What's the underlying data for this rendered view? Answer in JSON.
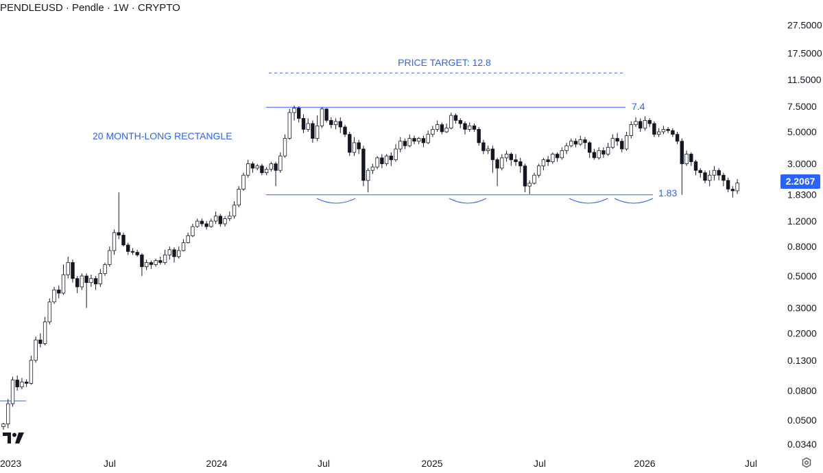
{
  "title": "PENDLEUSD · Pendle · 1W · CRYPTO",
  "last_price": "2.2067",
  "accent_color": "#2962ff",
  "candle_up_color": "#ffffff",
  "candle_down_color": "#131722",
  "chart_data": {
    "type": "candlestick",
    "y_scale": "log",
    "y_ticks": [
      "27.5000",
      "17.5000",
      "11.5000",
      "7.5000",
      "5.0000",
      "3.0000",
      "1.8300",
      "1.2000",
      "0.8000",
      "0.5000",
      "0.3000",
      "0.2000",
      "0.1300",
      "0.0800",
      "0.0500",
      "0.0340"
    ],
    "y_tick_values": [
      27.5,
      17.5,
      11.5,
      7.5,
      5.0,
      3.0,
      1.83,
      1.2,
      0.8,
      0.5,
      0.3,
      0.2,
      0.13,
      0.08,
      0.05,
      0.034
    ],
    "x_ticks": [
      "2023",
      "Jul",
      "2024",
      "Jul",
      "2025",
      "Jul",
      "2026",
      "Jul"
    ],
    "ylim": [
      0.029,
      45
    ],
    "annotations": {
      "price_target": "PRICE TARGET: 12.8",
      "pattern": "20 MONTH-LONG RECTANGLE",
      "resistance_label": "7.4",
      "support_label": "1.83"
    },
    "levels": {
      "resistance": 7.4,
      "support": 1.83,
      "target": 12.8,
      "early_line": 0.068
    },
    "candles": [
      [
        0.045,
        0.047,
        0.043,
        0.048
      ],
      [
        0.047,
        0.065,
        0.044,
        0.07
      ],
      [
        0.065,
        0.095,
        0.062,
        0.1
      ],
      [
        0.095,
        0.085,
        0.08,
        0.102
      ],
      [
        0.085,
        0.092,
        0.082,
        0.098
      ],
      [
        0.092,
        0.09,
        0.085,
        0.096
      ],
      [
        0.09,
        0.13,
        0.088,
        0.14
      ],
      [
        0.13,
        0.18,
        0.125,
        0.19
      ],
      [
        0.18,
        0.17,
        0.16,
        0.2
      ],
      [
        0.17,
        0.24,
        0.165,
        0.26
      ],
      [
        0.24,
        0.33,
        0.23,
        0.35
      ],
      [
        0.33,
        0.4,
        0.32,
        0.42
      ],
      [
        0.4,
        0.38,
        0.35,
        0.43
      ],
      [
        0.38,
        0.51,
        0.37,
        0.6
      ],
      [
        0.51,
        0.62,
        0.48,
        0.68
      ],
      [
        0.62,
        0.48,
        0.45,
        0.65
      ],
      [
        0.48,
        0.42,
        0.38,
        0.5
      ],
      [
        0.42,
        0.5,
        0.4,
        0.52
      ],
      [
        0.5,
        0.45,
        0.3,
        0.52
      ],
      [
        0.45,
        0.48,
        0.42,
        0.51
      ],
      [
        0.48,
        0.44,
        0.4,
        0.5
      ],
      [
        0.44,
        0.52,
        0.42,
        0.56
      ],
      [
        0.52,
        0.6,
        0.5,
        0.62
      ],
      [
        0.6,
        0.75,
        0.58,
        0.8
      ],
      [
        0.75,
        1.0,
        0.7,
        1.05
      ],
      [
        1.0,
        0.96,
        0.9,
        1.9
      ],
      [
        0.96,
        0.82,
        0.8,
        1.0
      ],
      [
        0.82,
        0.74,
        0.7,
        0.85
      ],
      [
        0.74,
        0.73,
        0.7,
        0.78
      ],
      [
        0.73,
        0.7,
        0.68,
        0.76
      ],
      [
        0.7,
        0.58,
        0.5,
        0.72
      ],
      [
        0.58,
        0.62,
        0.55,
        0.65
      ],
      [
        0.62,
        0.6,
        0.56,
        0.64
      ],
      [
        0.6,
        0.64,
        0.58,
        0.66
      ],
      [
        0.64,
        0.62,
        0.6,
        0.68
      ],
      [
        0.62,
        0.7,
        0.6,
        0.76
      ],
      [
        0.7,
        0.76,
        0.65,
        0.8
      ],
      [
        0.76,
        0.68,
        0.62,
        0.79
      ],
      [
        0.68,
        0.75,
        0.66,
        0.8
      ],
      [
        0.75,
        0.85,
        0.74,
        0.9
      ],
      [
        0.85,
        0.95,
        0.84,
        1.0
      ],
      [
        0.95,
        1.1,
        0.93,
        1.15
      ],
      [
        1.1,
        1.2,
        1.08,
        1.25
      ],
      [
        1.2,
        1.15,
        1.1,
        1.25
      ],
      [
        1.15,
        1.1,
        1.05,
        1.2
      ],
      [
        1.1,
        1.2,
        1.08,
        1.25
      ],
      [
        1.2,
        1.3,
        1.15,
        1.4
      ],
      [
        1.3,
        1.15,
        1.1,
        1.35
      ],
      [
        1.15,
        1.25,
        1.1,
        1.3
      ],
      [
        1.25,
        1.3,
        1.2,
        1.4
      ],
      [
        1.3,
        1.55,
        1.25,
        1.65
      ],
      [
        1.55,
        2.0,
        1.5,
        2.1
      ],
      [
        2.0,
        2.5,
        1.95,
        2.6
      ],
      [
        2.5,
        3.0,
        2.4,
        3.2
      ],
      [
        3.0,
        2.8,
        2.6,
        3.1
      ],
      [
        2.8,
        2.9,
        2.7,
        3.0
      ],
      [
        2.9,
        2.6,
        2.5,
        3.0
      ],
      [
        2.6,
        2.75,
        2.5,
        2.85
      ],
      [
        2.75,
        3.0,
        2.65,
        3.1
      ],
      [
        3.0,
        2.7,
        2.1,
        3.1
      ],
      [
        2.7,
        3.4,
        2.6,
        3.6
      ],
      [
        3.4,
        4.5,
        3.3,
        4.8
      ],
      [
        4.5,
        6.8,
        4.4,
        7.2
      ],
      [
        6.8,
        7.3,
        6.0,
        7.6
      ],
      [
        7.3,
        6.2,
        5.8,
        7.5
      ],
      [
        6.2,
        5.2,
        4.9,
        6.6
      ],
      [
        5.2,
        5.7,
        5.0,
        6.2
      ],
      [
        5.7,
        4.5,
        4.2,
        6.0
      ],
      [
        4.5,
        5.5,
        4.3,
        6.5
      ],
      [
        5.5,
        7.2,
        5.3,
        7.4
      ],
      [
        7.2,
        6.0,
        5.8,
        7.3
      ],
      [
        6.0,
        5.6,
        5.3,
        6.3
      ],
      [
        5.6,
        5.9,
        5.2,
        6.2
      ],
      [
        5.9,
        5.4,
        4.9,
        6.3
      ],
      [
        5.4,
        4.8,
        4.6,
        5.6
      ],
      [
        4.8,
        3.6,
        3.4,
        5.0
      ],
      [
        3.6,
        4.2,
        3.4,
        4.6
      ],
      [
        4.2,
        3.8,
        3.5,
        4.4
      ],
      [
        3.8,
        2.3,
        2.1,
        4.0
      ],
      [
        2.3,
        2.7,
        1.9,
        2.8
      ],
      [
        2.7,
        2.85,
        2.55,
        3.0
      ],
      [
        2.85,
        3.3,
        2.75,
        3.4
      ],
      [
        3.3,
        3.0,
        2.8,
        3.5
      ],
      [
        3.0,
        3.4,
        2.9,
        3.5
      ],
      [
        3.4,
        3.2,
        2.9,
        3.6
      ],
      [
        3.2,
        3.8,
        3.1,
        4.1
      ],
      [
        3.8,
        4.3,
        3.6,
        4.6
      ],
      [
        4.3,
        4.0,
        3.8,
        4.5
      ],
      [
        4.0,
        4.5,
        3.9,
        4.8
      ],
      [
        4.5,
        4.3,
        4.1,
        4.7
      ],
      [
        4.3,
        4.5,
        4.1,
        4.6
      ],
      [
        4.5,
        4.2,
        3.9,
        4.7
      ],
      [
        4.2,
        4.8,
        4.1,
        5.1
      ],
      [
        4.8,
        5.2,
        4.6,
        5.5
      ],
      [
        5.2,
        5.6,
        5.0,
        6.0
      ],
      [
        5.6,
        5.0,
        4.8,
        5.8
      ],
      [
        5.0,
        5.3,
        4.9,
        5.7
      ],
      [
        5.3,
        6.5,
        5.2,
        6.8
      ],
      [
        6.5,
        6.0,
        5.7,
        6.7
      ],
      [
        6.0,
        5.7,
        5.3,
        6.2
      ],
      [
        5.7,
        5.2,
        4.8,
        5.9
      ],
      [
        5.2,
        5.5,
        5.0,
        5.8
      ],
      [
        5.5,
        5.2,
        5.0,
        5.7
      ],
      [
        5.2,
        4.2,
        4.0,
        5.4
      ],
      [
        4.2,
        3.7,
        3.5,
        4.4
      ],
      [
        3.7,
        3.8,
        3.5,
        4.0
      ],
      [
        3.8,
        3.2,
        2.6,
        4.0
      ],
      [
        3.2,
        2.8,
        2.1,
        3.3
      ],
      [
        2.8,
        3.3,
        2.7,
        3.5
      ],
      [
        3.3,
        3.5,
        3.1,
        3.7
      ],
      [
        3.5,
        3.2,
        2.9,
        3.6
      ],
      [
        3.2,
        3.1,
        2.9,
        3.5
      ],
      [
        3.1,
        2.9,
        2.6,
        3.3
      ],
      [
        2.9,
        2.1,
        1.9,
        3.0
      ],
      [
        2.1,
        2.2,
        1.85,
        2.3
      ],
      [
        2.2,
        2.5,
        2.15,
        2.6
      ],
      [
        2.5,
        2.9,
        2.4,
        3.0
      ],
      [
        2.9,
        3.2,
        2.7,
        3.3
      ],
      [
        3.2,
        3.1,
        2.9,
        3.4
      ],
      [
        3.1,
        3.5,
        3.0,
        3.6
      ],
      [
        3.5,
        3.3,
        3.1,
        3.6
      ],
      [
        3.3,
        3.7,
        3.2,
        3.9
      ],
      [
        3.7,
        4.0,
        3.5,
        4.2
      ],
      [
        4.0,
        4.3,
        3.9,
        4.5
      ],
      [
        4.3,
        4.1,
        3.9,
        4.5
      ],
      [
        4.1,
        4.4,
        4.0,
        4.7
      ],
      [
        4.4,
        4.2,
        3.8,
        4.6
      ],
      [
        4.2,
        3.6,
        3.3,
        4.3
      ],
      [
        3.6,
        3.3,
        3.2,
        3.8
      ],
      [
        3.3,
        3.7,
        3.2,
        3.9
      ],
      [
        3.7,
        3.5,
        3.3,
        3.9
      ],
      [
        3.5,
        3.9,
        3.4,
        4.2
      ],
      [
        3.9,
        4.5,
        3.8,
        4.8
      ],
      [
        4.5,
        4.3,
        4.0,
        4.9
      ],
      [
        4.3,
        3.8,
        3.6,
        4.5
      ],
      [
        3.8,
        4.7,
        3.7,
        5.0
      ],
      [
        4.7,
        5.6,
        4.5,
        5.9
      ],
      [
        5.6,
        5.9,
        5.4,
        6.3
      ],
      [
        5.9,
        5.3,
        5.0,
        6.2
      ],
      [
        5.3,
        6.0,
        5.1,
        6.4
      ],
      [
        6.0,
        5.7,
        5.4,
        6.2
      ],
      [
        5.7,
        4.8,
        4.6,
        5.9
      ],
      [
        4.8,
        5.0,
        4.6,
        5.3
      ],
      [
        5.0,
        5.2,
        4.8,
        5.5
      ],
      [
        5.2,
        5.1,
        4.9,
        5.4
      ],
      [
        5.1,
        4.8,
        4.6,
        5.3
      ],
      [
        4.8,
        4.3,
        4.1,
        5.0
      ],
      [
        4.3,
        3.0,
        1.83,
        4.5
      ],
      [
        3.0,
        3.5,
        2.9,
        3.7
      ],
      [
        3.5,
        3.1,
        2.9,
        3.6
      ],
      [
        3.1,
        2.7,
        2.5,
        3.2
      ],
      [
        2.7,
        2.6,
        2.4,
        2.8
      ],
      [
        2.6,
        2.3,
        2.2,
        2.7
      ],
      [
        2.3,
        2.5,
        2.1,
        2.7
      ],
      [
        2.5,
        2.7,
        2.3,
        2.9
      ],
      [
        2.7,
        2.5,
        2.3,
        2.8
      ],
      [
        2.5,
        2.3,
        2.1,
        2.6
      ],
      [
        2.3,
        2.0,
        1.9,
        2.4
      ],
      [
        2.0,
        1.95,
        1.75,
        2.1
      ],
      [
        1.95,
        2.207,
        1.85,
        2.35
      ]
    ]
  }
}
